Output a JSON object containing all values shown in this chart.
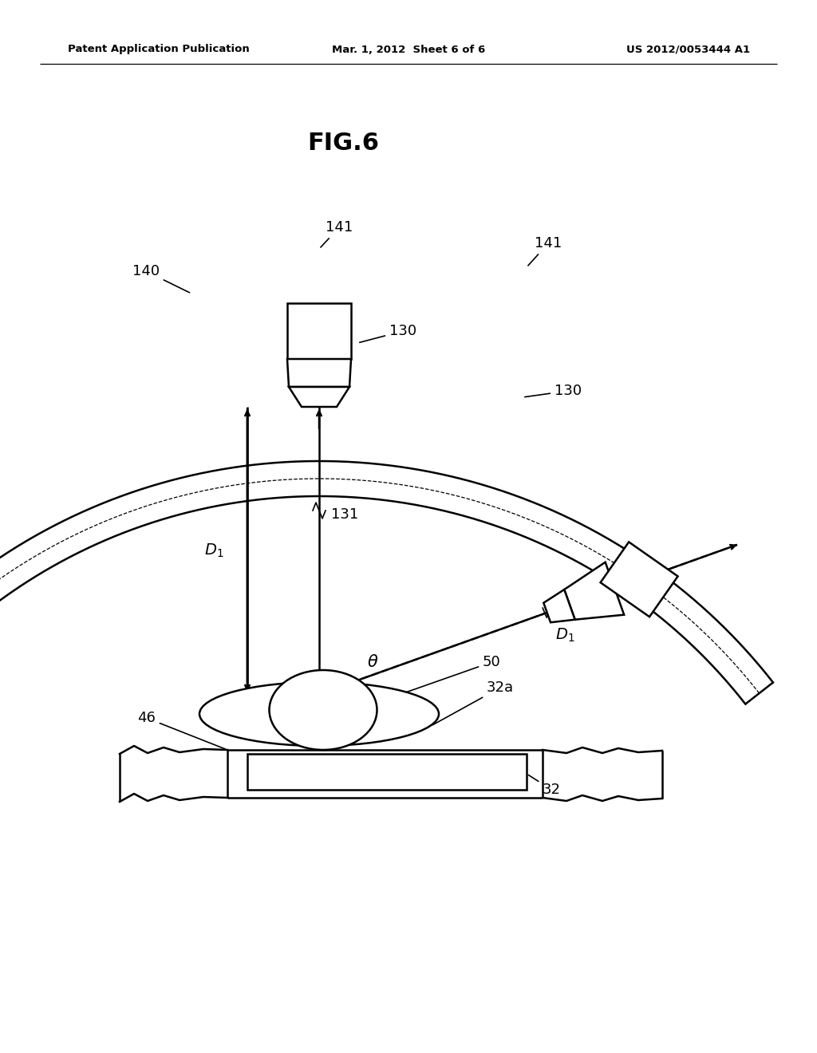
{
  "header_left": "Patent Application Publication",
  "header_center": "Mar. 1, 2012  Sheet 6 of 6",
  "header_right": "US 2012/0053444 A1",
  "fig_title": "FIG.6",
  "bg_color": "#ffffff",
  "lc": "#000000"
}
